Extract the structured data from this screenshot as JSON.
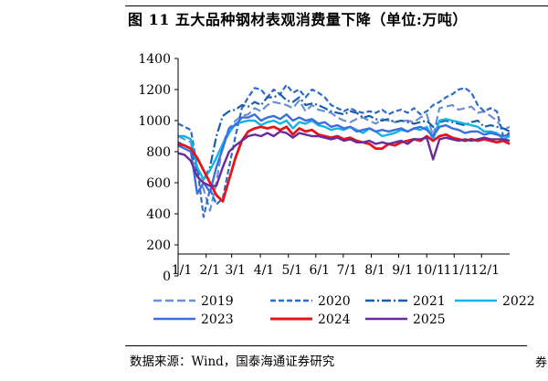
{
  "header": {
    "figure_label": "图 11",
    "title_text": "五大品种钢材表观消费量下降（单位:万吨）"
  },
  "footer": {
    "source": "数据来源：Wind，国泰海通证券研究",
    "stray_glyph": "券"
  },
  "colors": {
    "2019": "#6b8fd4",
    "2020": "#2e6bc8",
    "2021": "#1a5ea8",
    "2022": "#12b4e8",
    "2023": "#3b6fe0",
    "2024": "#e8121b",
    "2025": "#6a2c9c"
  },
  "chart_data": {
    "type": "line",
    "title": "五大品种钢材表观消费量下降（单位:万吨）",
    "xlabel": "",
    "ylabel": "",
    "ylim": [
      0,
      1400
    ],
    "yticks": [
      "0",
      "200",
      "400",
      "600",
      "800",
      "1000",
      "1200",
      "1400"
    ],
    "ytick_values": [
      0,
      200,
      400,
      600,
      800,
      1000,
      1200,
      1400
    ],
    "xticks": [
      "1/1",
      "2/1",
      "3/1",
      "4/1",
      "5/1",
      "6/1",
      "7/1",
      "8/1",
      "9/1",
      "10/1",
      "11/1",
      "12/1"
    ],
    "xtick_values": [
      0,
      4.4,
      8.4,
      12.9,
      17.3,
      21.6,
      25.9,
      30.3,
      34.6,
      39.0,
      43.3,
      47.6
    ],
    "xlim": [
      0,
      52
    ],
    "legend_position": "bottom",
    "series": [
      {
        "name": "2019",
        "style": "dash-long",
        "x": [
          0,
          1,
          2,
          3,
          4,
          5,
          6,
          7,
          8,
          9,
          10,
          11,
          12,
          13,
          14,
          15,
          16,
          17,
          18,
          19,
          20,
          21,
          22,
          23,
          24,
          25,
          26,
          27,
          28,
          29,
          30,
          31,
          32,
          33,
          34,
          35,
          36,
          37,
          38,
          39,
          40,
          41,
          42,
          43,
          44,
          45,
          46,
          47,
          48,
          49,
          50,
          51,
          52
        ],
        "values": [
          900,
          880,
          860,
          650,
          560,
          420,
          600,
          850,
          950,
          1000,
          1030,
          1040,
          1080,
          1060,
          1100,
          1120,
          1110,
          1100,
          1080,
          1130,
          1060,
          1100,
          1070,
          1060,
          1050,
          1020,
          1000,
          990,
          1010,
          1020,
          1000,
          980,
          1010,
          1000,
          990,
          1000,
          1000,
          990,
          1020,
          1040,
          900,
          1080,
          1090,
          1100,
          1070,
          1080,
          1090,
          1050,
          1060,
          1030,
          1000,
          940,
          960
        ]
      },
      {
        "name": "2020",
        "style": "dash",
        "x": [
          0,
          1,
          2,
          3,
          4,
          5,
          6,
          7,
          8,
          9,
          10,
          11,
          12,
          13,
          14,
          15,
          16,
          17,
          18,
          19,
          20,
          21,
          22,
          23,
          24,
          25,
          26,
          27,
          28,
          29,
          30,
          31,
          32,
          33,
          34,
          35,
          36,
          37,
          38,
          39,
          40,
          41,
          42,
          43,
          44,
          45,
          46,
          47,
          48,
          49,
          50,
          51,
          52
        ],
        "values": [
          980,
          960,
          940,
          700,
          380,
          560,
          460,
          500,
          700,
          900,
          1080,
          1150,
          1210,
          1200,
          1150,
          1200,
          1170,
          1230,
          1180,
          1200,
          1150,
          1200,
          1180,
          1150,
          1100,
          1080,
          1060,
          1080,
          1060,
          1050,
          1060,
          1050,
          1070,
          1040,
          1060,
          1070,
          1050,
          1080,
          1040,
          1060,
          1100,
          1120,
          1150,
          1170,
          1200,
          1210,
          1180,
          1100,
          1060,
          1080,
          1060,
          900,
          920
        ]
      },
      {
        "name": "2021",
        "style": "dash-dot",
        "x": [
          0,
          1,
          2,
          3,
          4,
          5,
          6,
          7,
          8,
          9,
          10,
          11,
          12,
          13,
          14,
          15,
          16,
          17,
          18,
          19,
          20,
          21,
          22,
          23,
          24,
          25,
          26,
          27,
          28,
          29,
          30,
          31,
          32,
          33,
          34,
          35,
          36,
          37,
          38,
          39,
          40,
          41,
          42,
          43,
          44,
          45,
          46,
          47,
          48,
          49,
          50,
          51,
          52
        ],
        "values": [
          860,
          840,
          820,
          680,
          620,
          700,
          900,
          1030,
          1060,
          1070,
          1100,
          1090,
          1120,
          1100,
          1150,
          1150,
          1170,
          1130,
          1120,
          1150,
          1100,
          1110,
          1100,
          1080,
          1060,
          1050,
          1040,
          1060,
          1050,
          1020,
          1030,
          1010,
          1000,
          1010,
          990,
          1000,
          990,
          980,
          990,
          1000,
          960,
          990,
          1000,
          990,
          980,
          970,
          990,
          1000,
          960,
          970,
          960,
          950,
          930
        ]
      },
      {
        "name": "2022",
        "style": "solid",
        "x": [
          0,
          1,
          2,
          3,
          4,
          5,
          6,
          7,
          8,
          9,
          10,
          11,
          12,
          13,
          14,
          15,
          16,
          17,
          18,
          19,
          20,
          21,
          22,
          23,
          24,
          25,
          26,
          27,
          28,
          29,
          30,
          31,
          32,
          33,
          34,
          35,
          36,
          37,
          38,
          39,
          40,
          41,
          42,
          43,
          44,
          45,
          46,
          47,
          48,
          49,
          50,
          51,
          52
        ],
        "values": [
          900,
          900,
          880,
          700,
          620,
          680,
          760,
          850,
          920,
          980,
          990,
          1000,
          1000,
          970,
          990,
          1000,
          980,
          1000,
          950,
          990,
          980,
          1000,
          970,
          960,
          940,
          950,
          940,
          960,
          940,
          920,
          950,
          930,
          900,
          910,
          920,
          940,
          930,
          950,
          940,
          960,
          880,
          1000,
          1010,
          1000,
          990,
          980,
          970,
          960,
          930,
          930,
          920,
          880,
          900
        ]
      },
      {
        "name": "2023",
        "style": "solid",
        "x": [
          0,
          1,
          2,
          3,
          4,
          5,
          6,
          7,
          8,
          9,
          10,
          11,
          12,
          13,
          14,
          15,
          16,
          17,
          18,
          19,
          20,
          21,
          22,
          23,
          24,
          25,
          26,
          27,
          28,
          29,
          30,
          31,
          32,
          33,
          34,
          35,
          36,
          37,
          38,
          39,
          40,
          41,
          42,
          43,
          44,
          45,
          46,
          47,
          48,
          49,
          50,
          51,
          52
        ],
        "values": [
          840,
          820,
          800,
          530,
          600,
          540,
          700,
          820,
          950,
          970,
          1020,
          1020,
          1040,
          1000,
          1020,
          1030,
          1010,
          1040,
          1000,
          1020,
          1000,
          1010,
          980,
          990,
          960,
          970,
          950,
          960,
          930,
          940,
          950,
          930,
          940,
          930,
          940,
          950,
          930,
          950,
          960,
          940,
          900,
          960,
          970,
          950,
          940,
          920,
          930,
          930,
          910,
          920,
          910,
          900,
          910
        ]
      },
      {
        "name": "2024",
        "style": "solid",
        "x": [
          0,
          1,
          2,
          3,
          4,
          5,
          6,
          7,
          8,
          9,
          10,
          11,
          12,
          13,
          14,
          15,
          16,
          17,
          18,
          19,
          20,
          21,
          22,
          23,
          24,
          25,
          26,
          27,
          28,
          29,
          30,
          31,
          32,
          33,
          34,
          35,
          36,
          37,
          38,
          39,
          40,
          41,
          42,
          43,
          44,
          45,
          46,
          47,
          48,
          49,
          50,
          51,
          52
        ],
        "values": [
          850,
          840,
          820,
          760,
          680,
          600,
          520,
          480,
          620,
          760,
          870,
          930,
          950,
          960,
          950,
          960,
          940,
          960,
          910,
          950,
          930,
          940,
          910,
          900,
          890,
          900,
          880,
          890,
          870,
          860,
          850,
          820,
          820,
          850,
          840,
          860,
          870,
          880,
          870,
          900,
          870,
          900,
          910,
          890,
          880,
          870,
          880,
          870,
          880,
          870,
          860,
          870,
          850
        ]
      },
      {
        "name": "2025",
        "style": "solid",
        "x": [
          0,
          1,
          2,
          3,
          4,
          5,
          6,
          7,
          8,
          9,
          10,
          11,
          12,
          13,
          14,
          15,
          16,
          17,
          18,
          19,
          20,
          21,
          22,
          23,
          24,
          25,
          26,
          27,
          28,
          29,
          30,
          31,
          32,
          33,
          34,
          35,
          36,
          37,
          38,
          39,
          40,
          41,
          42,
          43,
          44,
          45,
          46,
          47,
          48,
          49,
          50,
          51,
          52
        ],
        "values": [
          790,
          780,
          740,
          640,
          600,
          580,
          580,
          700,
          800,
          840,
          870,
          900,
          910,
          900,
          920,
          900,
          930,
          920,
          890,
          920,
          910,
          900,
          900,
          890,
          880,
          890,
          870,
          880,
          860,
          860,
          870,
          850,
          860,
          850,
          860,
          870,
          850,
          880,
          880,
          890,
          750,
          880,
          890,
          880,
          870,
          880,
          870,
          880,
          890,
          880,
          880,
          880,
          870
        ]
      }
    ]
  }
}
